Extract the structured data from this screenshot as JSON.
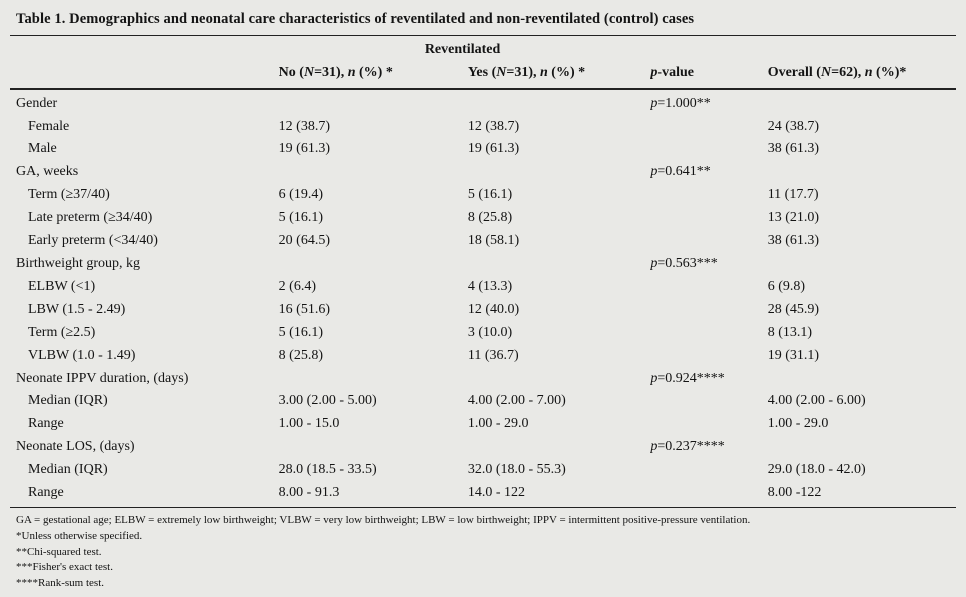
{
  "page": {
    "background": "#e9e9e6",
    "rule_color": "#222222"
  },
  "table": {
    "title": "Table 1. Demographics and neonatal care characteristics of reventilated and non-reventilated (control) cases",
    "group_header": "Reventilated",
    "columns": [
      {
        "key": "no",
        "label": "No (N=31), n (%) *"
      },
      {
        "key": "yes",
        "label": "Yes (N=31), n (%) *"
      },
      {
        "key": "p",
        "label": "p-value"
      },
      {
        "key": "overall",
        "label": "Overall (N=62), n (%)*"
      }
    ],
    "rows": [
      {
        "label": "Gender",
        "section": true,
        "no": "",
        "yes": "",
        "p": "p=1.000**",
        "overall": ""
      },
      {
        "label": "Female",
        "section": false,
        "no": "12 (38.7)",
        "yes": "12 (38.7)",
        "p": "",
        "overall": "24 (38.7)"
      },
      {
        "label": "Male",
        "section": false,
        "no": "19 (61.3)",
        "yes": "19 (61.3)",
        "p": "",
        "overall": "38 (61.3)"
      },
      {
        "label": "GA, weeks",
        "section": true,
        "no": "",
        "yes": "",
        "p": "p=0.641**",
        "overall": ""
      },
      {
        "label": "Term (≥37/40)",
        "section": false,
        "no": "6 (19.4)",
        "yes": "5 (16.1)",
        "p": "",
        "overall": "11 (17.7)"
      },
      {
        "label": "Late preterm (≥34/40)",
        "section": false,
        "no": "5 (16.1)",
        "yes": "8 (25.8)",
        "p": "",
        "overall": "13 (21.0)"
      },
      {
        "label": "Early preterm (<34/40)",
        "section": false,
        "no": "20 (64.5)",
        "yes": "18 (58.1)",
        "p": "",
        "overall": "38 (61.3)"
      },
      {
        "label": "Birthweight group, kg",
        "section": true,
        "no": "",
        "yes": "",
        "p": "p=0.563***",
        "overall": ""
      },
      {
        "label": "ELBW (<1)",
        "section": false,
        "no": "2 (6.4)",
        "yes": "4 (13.3)",
        "p": "",
        "overall": "6 (9.8)"
      },
      {
        "label": "LBW (1.5 - 2.49)",
        "section": false,
        "no": "16 (51.6)",
        "yes": "12 (40.0)",
        "p": "",
        "overall": "28 (45.9)"
      },
      {
        "label": "Term (≥2.5)",
        "section": false,
        "no": "5 (16.1)",
        "yes": "3 (10.0)",
        "p": "",
        "overall": "8 (13.1)"
      },
      {
        "label": "VLBW (1.0 - 1.49)",
        "section": false,
        "no": "8 (25.8)",
        "yes": "11 (36.7)",
        "p": "",
        "overall": "19 (31.1)"
      },
      {
        "label": "Neonate IPPV duration, (days)",
        "section": true,
        "no": "",
        "yes": "",
        "p": "p=0.924****",
        "overall": ""
      },
      {
        "label": "Median (IQR)",
        "section": false,
        "no": "3.00 (2.00 - 5.00)",
        "yes": "4.00 (2.00 - 7.00)",
        "p": "",
        "overall": "4.00 (2.00 - 6.00)"
      },
      {
        "label": "Range",
        "section": false,
        "no": "1.00 - 15.0",
        "yes": "1.00 - 29.0",
        "p": "",
        "overall": "1.00 - 29.0"
      },
      {
        "label": "Neonate LOS, (days)",
        "section": true,
        "no": "",
        "yes": "",
        "p": "p=0.237****",
        "overall": ""
      },
      {
        "label": "Median (IQR)",
        "section": false,
        "no": "28.0 (18.5 - 33.5)",
        "yes": "32.0 (18.0 - 55.3)",
        "p": "",
        "overall": "29.0 (18.0 - 42.0)"
      },
      {
        "label": "Range",
        "section": false,
        "no": "8.00 - 91.3",
        "yes": "14.0 - 122",
        "p": "",
        "overall": "8.00 -122"
      }
    ],
    "footnotes": [
      "GA = gestational age; ELBW = extremely low birthweight; VLBW = very low birthweight; LBW = low birthweight; IPPV = intermittent positive-pressure ventilation.",
      "*Unless otherwise specified.",
      "**Chi-squared test.",
      "***Fisher's exact test.",
      "****Rank-sum test."
    ]
  }
}
